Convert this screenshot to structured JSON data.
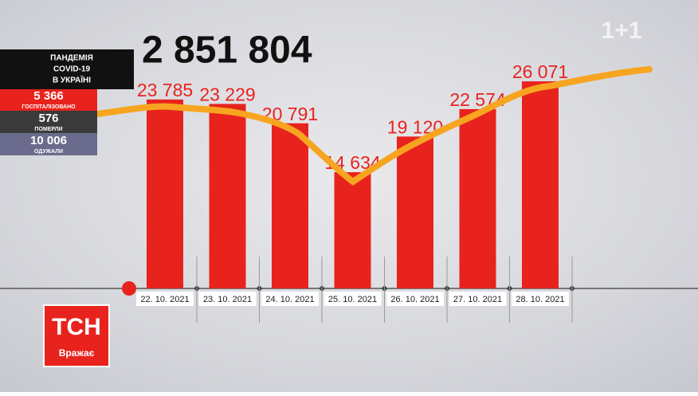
{
  "chart_data": {
    "type": "bar",
    "categories": [
      "22. 10. 2021",
      "23. 10. 2021",
      "24. 10. 2021",
      "25. 10. 2021",
      "26. 10. 2021",
      "27. 10. 2021",
      "28. 10. 2021"
    ],
    "values": [
      23785,
      23229,
      20791,
      14634,
      19120,
      22574,
      26071
    ],
    "value_labels": [
      "23 785",
      "23 229",
      "20 791",
      "14 634",
      "19 120",
      "22 574",
      "26 071"
    ],
    "color": "#e8231e"
  },
  "headline": "2 851 804",
  "panel": {
    "title": [
      "ПАНДЕМІЯ",
      "COVID-19",
      "В УКРАЇНІ"
    ],
    "rows": [
      {
        "value": "5 366",
        "label": "ГОСПІТАЛІЗОВАНО"
      },
      {
        "value": "576",
        "label": "ПОМЕРЛИ"
      },
      {
        "value": "10 006",
        "label": "ОДУЖАЛИ"
      }
    ]
  },
  "logo": {
    "name": "ТСН",
    "tagline": "Вражає",
    "channel": "1+1"
  }
}
